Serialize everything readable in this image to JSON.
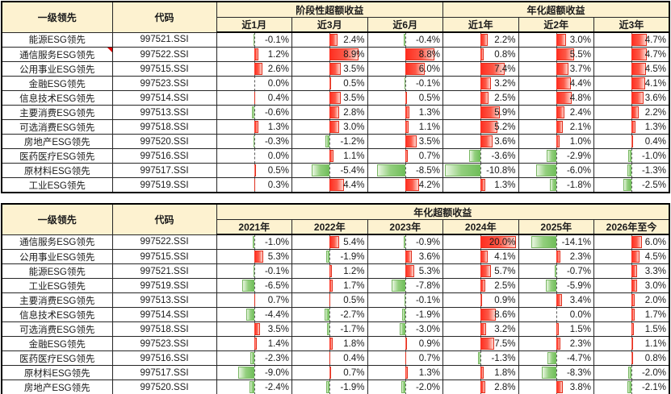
{
  "colors": {
    "bar_positive": "#fe2c1e",
    "bar_positive_border": "#e0301e",
    "bar_negative": "#6ebd58",
    "bar_negative_border": "#79b763",
    "header_bg": "#fdf2d0",
    "comment_marker": "#e00000"
  },
  "tables": [
    {
      "id": "periodic",
      "col1_header": "一级领先",
      "col2_header": "代码",
      "group_headers": [
        {
          "label": "阶段性超额收益",
          "span": 3
        },
        {
          "label": "年化超额收益",
          "span": 3
        }
      ],
      "sub_headers": [
        "近1月",
        "近3月",
        "近6月",
        "近1年",
        "近2年",
        "近3年"
      ],
      "value_suffix": "%",
      "rows": [
        {
          "name": "能源ESG领先",
          "code": "997521.SSI",
          "values": [
            -0.1,
            2.4,
            -0.4,
            2.2,
            3.0,
            4.7
          ],
          "note": false
        },
        {
          "name": "通信服务ESG领先",
          "code": "997522.SSI",
          "values": [
            1.2,
            8.9,
            8.8,
            0.8,
            5.5,
            4.7
          ],
          "note": true
        },
        {
          "name": "公用事业ESG领先",
          "code": "997515.SSI",
          "values": [
            2.6,
            3.5,
            6.0,
            7.4,
            3.7,
            4.5
          ],
          "note": false
        },
        {
          "name": "金融ESG领先",
          "code": "997523.SSI",
          "values": [
            0.0,
            0.5,
            -0.1,
            3.2,
            4.4,
            4.1
          ],
          "note": false
        },
        {
          "name": "信息技术ESG领先",
          "code": "997514.SSI",
          "values": [
            0.4,
            3.5,
            0.5,
            2.5,
            4.8,
            3.6
          ],
          "note": false
        },
        {
          "name": "主要消费ESG领先",
          "code": "997513.SSI",
          "values": [
            -0.6,
            2.8,
            1.3,
            5.9,
            2.4,
            2.2
          ],
          "note": false
        },
        {
          "name": "可选消费ESG领先",
          "code": "997518.SSI",
          "values": [
            1.3,
            3.0,
            1.1,
            5.2,
            2.1,
            1.3
          ],
          "note": false
        },
        {
          "name": "房地产ESG领先",
          "code": "997520.SSI",
          "values": [
            -0.3,
            -1.2,
            3.5,
            3.6,
            1.0,
            0.4
          ],
          "note": false
        },
        {
          "name": "医药医疗ESG领先",
          "code": "997516.SSI",
          "values": [
            0.0,
            1.1,
            0.7,
            -3.6,
            -2.9,
            -1.0
          ],
          "note": false
        },
        {
          "name": "原材料ESG领先",
          "code": "997517.SSI",
          "values": [
            0.5,
            -5.4,
            -8.5,
            -10.8,
            -6.0,
            -1.3
          ],
          "note": false
        },
        {
          "name": "工业ESG领先",
          "code": "997519.SSI",
          "values": [
            0.3,
            4.4,
            4.2,
            1.3,
            -1.8,
            -2.5
          ],
          "note": false
        }
      ]
    },
    {
      "id": "annual",
      "col1_header": "一级领先",
      "col2_header": "代码",
      "group_headers": [
        {
          "label": "年化超额收益",
          "span": 6
        }
      ],
      "sub_headers": [
        "2021年",
        "2022年",
        "2023年",
        "2024年",
        "2025年",
        "2026年至今"
      ],
      "value_suffix": "%",
      "rows": [
        {
          "name": "通信服务ESG领先",
          "code": "997522.SSI",
          "values": [
            -1.0,
            5.4,
            -0.9,
            20.0,
            -14.1,
            6.0
          ],
          "note": false
        },
        {
          "name": "公用事业ESG领先",
          "code": "997515.SSI",
          "values": [
            5.3,
            -1.9,
            3.6,
            4.1,
            2.3,
            4.5
          ],
          "note": false
        },
        {
          "name": "能源ESG领先",
          "code": "997521.SSI",
          "values": [
            -0.1,
            1.2,
            5.3,
            5.7,
            -0.7,
            3.3
          ],
          "note": false
        },
        {
          "name": "工业ESG领先",
          "code": "997519.SSI",
          "values": [
            -6.5,
            1.7,
            -7.8,
            2.5,
            -5.9,
            3.0
          ],
          "note": false
        },
        {
          "name": "主要消费ESG领先",
          "code": "997513.SSI",
          "values": [
            0.7,
            0.5,
            -0.1,
            0.9,
            3.4,
            2.0
          ],
          "note": false
        },
        {
          "name": "信息技术ESG领先",
          "code": "997514.SSI",
          "values": [
            -4.4,
            -2.7,
            -1.9,
            8.6,
            0.0,
            1.7
          ],
          "note": false
        },
        {
          "name": "可选消费ESG领先",
          "code": "997518.SSI",
          "values": [
            3.5,
            -1.7,
            -3.0,
            3.2,
            1.5,
            1.5
          ],
          "note": false
        },
        {
          "name": "金融ESG领先",
          "code": "997523.SSI",
          "values": [
            1.4,
            1.8,
            0.9,
            7.5,
            2.3,
            1.1
          ],
          "note": false
        },
        {
          "name": "医药医疗ESG领先",
          "code": "997516.SSI",
          "values": [
            -2.3,
            0.4,
            0.7,
            -1.3,
            -4.7,
            0.8
          ],
          "note": false
        },
        {
          "name": "原材料ESG领先",
          "code": "997517.SSI",
          "values": [
            -9.0,
            0.7,
            1.3,
            1.8,
            -8.3,
            -2.0
          ],
          "note": false
        },
        {
          "name": "房地产ESG领先",
          "code": "997520.SSI",
          "values": [
            -2.4,
            -1.9,
            -2.0,
            2.8,
            3.8,
            -2.1
          ],
          "note": false
        }
      ]
    }
  ]
}
